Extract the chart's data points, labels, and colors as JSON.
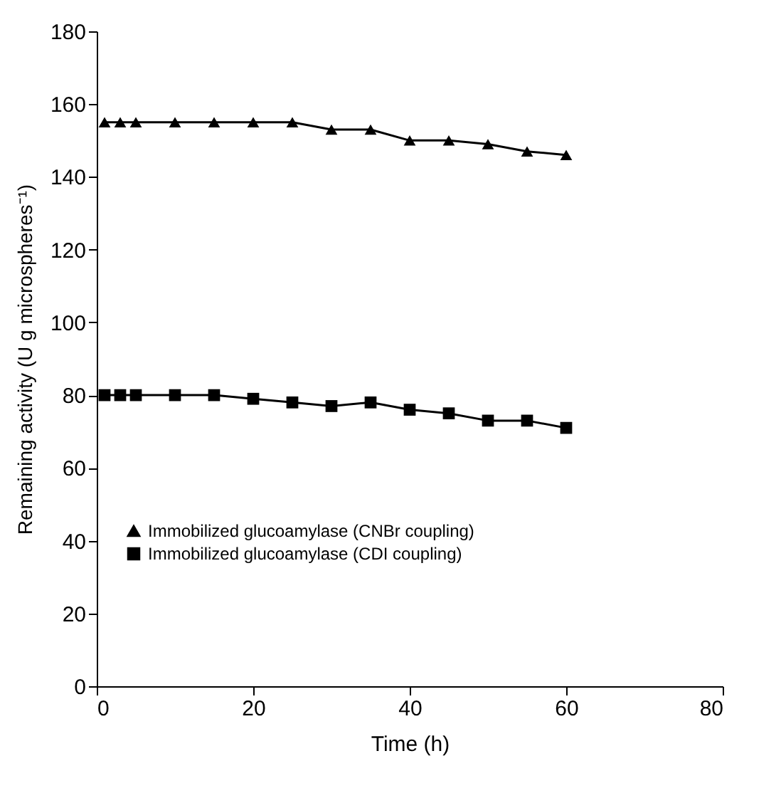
{
  "chart_data": {
    "type": "line",
    "xlabel": "Time (h)",
    "ylabel": "Remaining activity (U g microspheres⁻¹)",
    "x": [
      1,
      3,
      5,
      10,
      15,
      20,
      25,
      30,
      35,
      40,
      45,
      50,
      55,
      60
    ],
    "series": [
      {
        "name": "Immobilized glucoamylase (CNBr coupling)",
        "color": "#000000",
        "marker": "triangle",
        "values": [
          155,
          155,
          155,
          155,
          155,
          155,
          155,
          153,
          153,
          150,
          150,
          149,
          147,
          146
        ]
      },
      {
        "name": "Immobilized glucoamylase (CDI coupling)",
        "color": "#000000",
        "marker": "square",
        "values": [
          80,
          80,
          80,
          80,
          80,
          79,
          78,
          77,
          78,
          76,
          75,
          73,
          73,
          71
        ]
      }
    ],
    "xlim": [
      0,
      80
    ],
    "xticks": [
      0,
      20,
      40,
      60,
      80
    ],
    "ylim": [
      0,
      180
    ],
    "yticks": [
      0,
      20,
      40,
      60,
      80,
      100,
      120,
      140,
      160,
      180
    ],
    "grid": false,
    "legend": "bottom left",
    "line_style": "solid"
  }
}
